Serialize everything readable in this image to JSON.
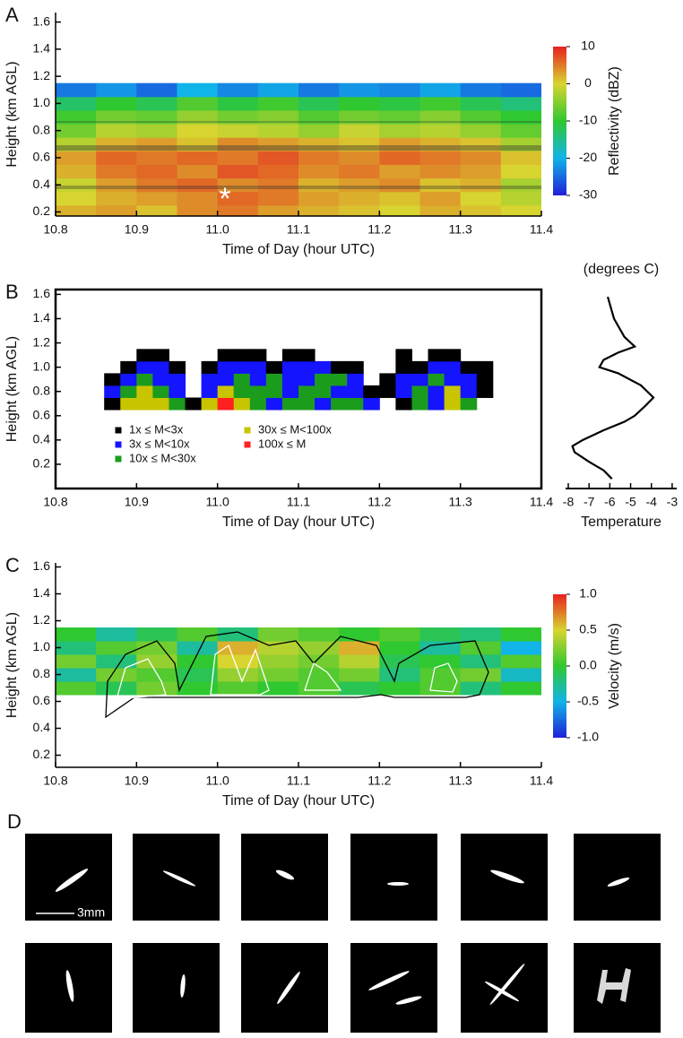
{
  "chart_data": [
    {
      "type": "heatmap",
      "panel_label": "A",
      "xlabel": "Time of Day (hour UTC)",
      "ylabel": "Height (km AGL)",
      "annotation": "*",
      "xlim": [
        10.8,
        11.4
      ],
      "xticks": [
        10.8,
        10.9,
        {
          "value": 11,
          "label": "11.0"
        },
        11.1,
        11.2,
        11.3,
        11.4
      ],
      "ylim": [
        0.17,
        1.67
      ],
      "yticks": [
        0.2,
        0.4,
        0.6,
        0.8,
        {
          "value": 1,
          "label": "1.0"
        },
        1.2,
        1.4,
        1.6
      ],
      "zlabel": "Reflectivity (dBZ)",
      "zlim": [
        -30,
        10
      ],
      "zticks": [
        -30,
        -20,
        -10,
        0,
        10
      ],
      "colorscale": [
        "#2020d8",
        "#10b4e8",
        "#30c830",
        "#d8d430",
        "#e82020"
      ],
      "x": [
        10.825,
        10.875,
        10.925,
        10.975,
        11.025,
        11.075,
        11.125,
        11.175,
        11.225,
        11.275,
        11.325,
        11.375
      ],
      "y": [
        0.2,
        0.3,
        0.4,
        0.5,
        0.6,
        0.7,
        0.8,
        0.9,
        1.0,
        1.1
      ],
      "z": [
        [
          2,
          3,
          1,
          4,
          5,
          3,
          2,
          1,
          0,
          2,
          1,
          0
        ],
        [
          0,
          2,
          3,
          4,
          6,
          5,
          3,
          2,
          1,
          3,
          0,
          -2
        ],
        [
          -1,
          3,
          5,
          6,
          4,
          5,
          2,
          3,
          4,
          1,
          2,
          -3
        ],
        [
          2,
          5,
          6,
          4,
          7,
          6,
          4,
          5,
          3,
          4,
          3,
          0
        ],
        [
          3,
          6,
          5,
          6,
          5,
          7,
          5,
          4,
          6,
          5,
          4,
          1
        ],
        [
          -2,
          2,
          3,
          1,
          4,
          3,
          2,
          1,
          3,
          2,
          1,
          -3
        ],
        [
          -6,
          -2,
          -3,
          0,
          -1,
          -2,
          -4,
          -1,
          -3,
          -2,
          -4,
          -7
        ],
        [
          -9,
          -6,
          -7,
          -4,
          -6,
          -5,
          -8,
          -6,
          -7,
          -5,
          -8,
          -10
        ],
        [
          -13,
          -10,
          -12,
          -8,
          -11,
          -9,
          -12,
          -10,
          -11,
          -9,
          -12,
          -14
        ],
        [
          -24,
          -22,
          -25,
          -20,
          -23,
          -21,
          -24,
          -22,
          -23,
          -21,
          -24,
          -25
        ]
      ]
    },
    {
      "type": "classmap",
      "panel_label": "B",
      "xlabel": "Time of Day (hour UTC)",
      "ylabel": "Height (km AGL)",
      "xlim": [
        10.8,
        11.4
      ],
      "xticks": [
        10.8,
        10.9,
        {
          "value": 11,
          "label": "11.0"
        },
        11.1,
        11.2,
        11.3,
        11.4
      ],
      "ylim": [
        0,
        1.64
      ],
      "yticks": [
        0.2,
        0.4,
        0.6,
        0.8,
        {
          "value": 1,
          "label": "1.0"
        },
        1.2,
        1.4,
        1.6
      ],
      "legend": [
        {
          "label": "1x ≤ M<3x",
          "color": "#000000"
        },
        {
          "label": "3x ≤ M<10x",
          "color": "#1414ff"
        },
        {
          "label": "10x ≤ M<30x",
          "color": "#1c9c1c"
        },
        {
          "label": "30x ≤ M<100x",
          "color": "#c8c400"
        },
        {
          "label": "100x ≤ M",
          "color": "#ff2020"
        }
      ],
      "x": [
        10.87,
        10.89,
        10.91,
        10.93,
        10.95,
        10.97,
        10.99,
        11.01,
        11.03,
        11.05,
        11.07,
        11.09,
        11.11,
        11.13,
        11.15,
        11.17,
        11.19,
        11.21,
        11.23,
        11.25,
        11.27,
        11.29,
        11.31,
        11.33
      ],
      "y": [
        0.7,
        0.8,
        0.9,
        1.0,
        1.1
      ],
      "z": [
        [
          0,
          3,
          3,
          3,
          2,
          0,
          3,
          4,
          3,
          2,
          1,
          2,
          2,
          1,
          2,
          2,
          1,
          null,
          0,
          2,
          1,
          3,
          2,
          null
        ],
        [
          1,
          2,
          3,
          2,
          1,
          null,
          1,
          3,
          2,
          2,
          2,
          1,
          2,
          2,
          1,
          1,
          0,
          0,
          1,
          2,
          1,
          3,
          1,
          0
        ],
        [
          0,
          1,
          2,
          1,
          1,
          null,
          1,
          1,
          2,
          1,
          2,
          1,
          1,
          2,
          2,
          1,
          null,
          0,
          1,
          1,
          2,
          1,
          1,
          0
        ],
        [
          null,
          0,
          1,
          1,
          0,
          null,
          0,
          1,
          1,
          1,
          0,
          1,
          1,
          1,
          0,
          0,
          null,
          null,
          0,
          0,
          1,
          1,
          0,
          0
        ],
        [
          null,
          null,
          0,
          0,
          null,
          null,
          null,
          0,
          0,
          0,
          null,
          0,
          0,
          null,
          null,
          null,
          null,
          null,
          0,
          null,
          0,
          0,
          null,
          null
        ]
      ]
    },
    {
      "type": "line",
      "title": "(degrees C)",
      "xlabel": "Temperature",
      "xlim": [
        -8.13,
        -2.78
      ],
      "xticks": [
        -8,
        -7,
        -6,
        -5,
        -4,
        -3
      ],
      "ylim": [
        0,
        1.64
      ],
      "y": [
        1.58,
        1.4,
        1.25,
        1.17,
        1.12,
        1.06,
        1.0,
        0.95,
        0.85,
        0.75,
        0.68,
        0.6,
        0.55,
        0.48,
        0.4,
        0.35,
        0.3,
        0.22,
        0.15,
        0.08
      ],
      "series": [
        {
          "color": "#000000",
          "values": [
            -6.1,
            -5.8,
            -5.3,
            -4.8,
            -5.6,
            -6.3,
            -6.5,
            -5.6,
            -4.5,
            -3.9,
            -4.3,
            -4.8,
            -5.3,
            -6.3,
            -7.3,
            -7.8,
            -7.7,
            -7.0,
            -6.3,
            -5.9
          ]
        }
      ]
    },
    {
      "type": "heatmap",
      "panel_label": "C",
      "xlabel": "Time of Day (hour UTC)",
      "ylabel": "Height (km AGL)",
      "xlim": [
        10.8,
        11.4
      ],
      "xticks": [
        10.8,
        10.9,
        {
          "value": 11,
          "label": "11.0"
        },
        11.1,
        11.2,
        11.3,
        11.4
      ],
      "ylim": [
        0.11,
        1.63
      ],
      "yticks": [
        0.2,
        0.4,
        0.6,
        0.8,
        {
          "value": 1,
          "label": "1.0"
        },
        1.2,
        1.4,
        1.6
      ],
      "zlabel": "Velocity (m/s)",
      "zlim": [
        -1,
        1
      ],
      "zticks": [
        {
          "value": -1,
          "label": "-1.0"
        },
        -0.5,
        {
          "value": 0,
          "label": "0.0"
        },
        0.5,
        {
          "value": 1,
          "label": "1.0"
        }
      ],
      "colorscale": [
        "#2020d8",
        "#10b4e8",
        "#30c830",
        "#d8d430",
        "#e82020"
      ],
      "x": [
        10.825,
        10.875,
        10.925,
        10.975,
        11.025,
        11.075,
        11.125,
        11.175,
        11.225,
        11.275,
        11.325,
        11.375
      ],
      "y": [
        0.7,
        0.8,
        0.9,
        1.0,
        1.1
      ],
      "z": [
        [
          0.1,
          -0.1,
          0.2,
          0,
          0.1,
          0,
          0.1,
          -0.1,
          0,
          0.1,
          -0.2,
          0
        ],
        [
          -0.3,
          0.2,
          0.1,
          -0.1,
          0.3,
          0.2,
          0.1,
          0.2,
          -0.2,
          0.1,
          0.2,
          -0.4
        ],
        [
          0.2,
          -0.2,
          0.3,
          0,
          0.5,
          0.3,
          0.2,
          0.4,
          -0.1,
          0,
          -0.2,
          0.1
        ],
        [
          -0.2,
          0.1,
          0.2,
          -0.3,
          0.6,
          0.4,
          0.3,
          0.6,
          0,
          -0.3,
          0.1,
          -0.5
        ],
        [
          0,
          -0.3,
          -0.1,
          0.1,
          -0.2,
          0.2,
          0.1,
          0,
          0.1,
          -0.1,
          -0.2,
          0
        ]
      ]
    }
  ],
  "figure_d": {
    "panel_label": "D",
    "scale_bar": "3mm"
  }
}
